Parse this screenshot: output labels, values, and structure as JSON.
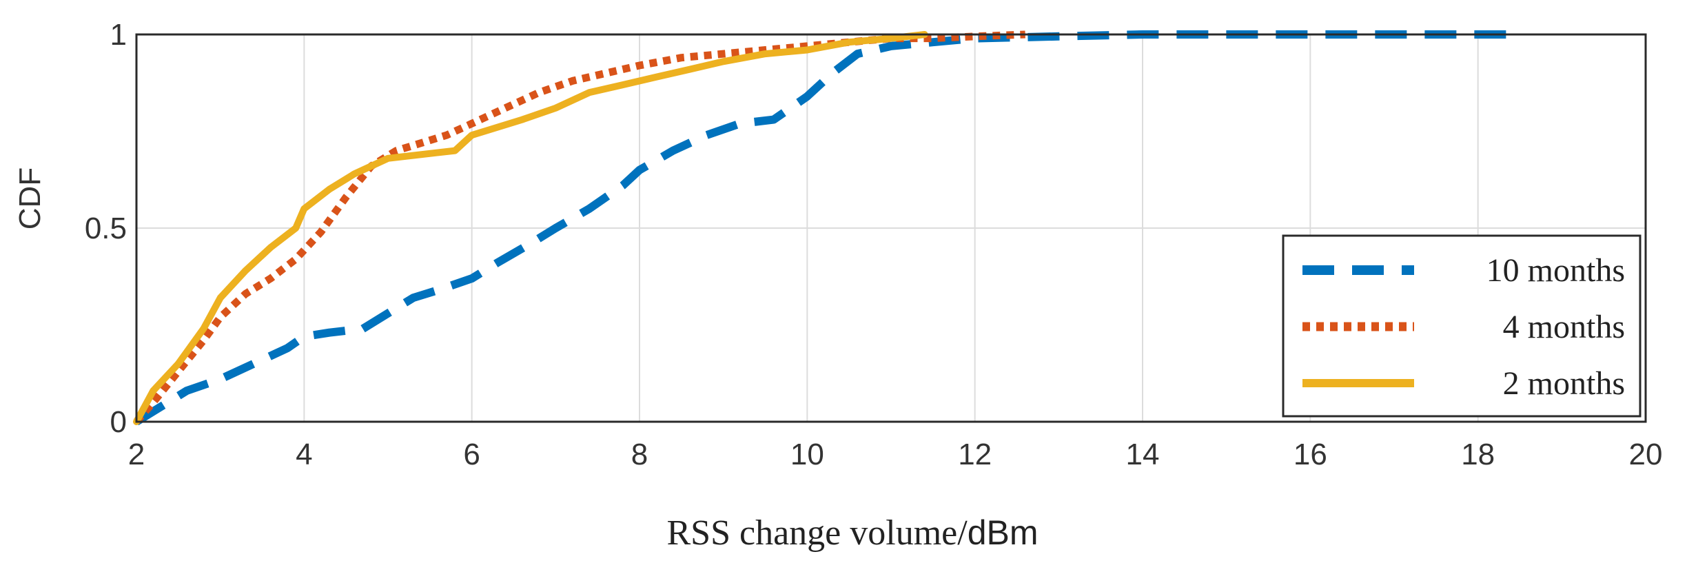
{
  "chart_data": {
    "type": "line",
    "title": "",
    "xlabel_main": "RSS change volume/",
    "xlabel_unit": "dBm",
    "ylabel": "CDF",
    "xlim": [
      2,
      20
    ],
    "ylim": [
      0,
      1
    ],
    "xticks": [
      2,
      4,
      6,
      8,
      10,
      12,
      14,
      16,
      18,
      20
    ],
    "yticks": [
      0,
      0.5,
      1
    ],
    "ytick_labels": [
      "0",
      "0.5",
      "1"
    ],
    "grid": true,
    "legend_position": "bottom-right",
    "series": [
      {
        "name": "10 months",
        "color": "#0072BD",
        "style": "dashed",
        "x": [
          2.0,
          2.3,
          2.6,
          3.0,
          3.4,
          3.8,
          4.0,
          4.3,
          4.7,
          5.0,
          5.3,
          5.6,
          6.0,
          6.3,
          6.7,
          7.0,
          7.4,
          7.8,
          8.0,
          8.4,
          8.8,
          9.2,
          9.6,
          10.0,
          10.3,
          10.6,
          11.0,
          11.5,
          12.0,
          13.0,
          14.0,
          16.0,
          18.4
        ],
        "y": [
          0.0,
          0.04,
          0.08,
          0.11,
          0.15,
          0.19,
          0.22,
          0.23,
          0.24,
          0.28,
          0.32,
          0.34,
          0.37,
          0.41,
          0.46,
          0.5,
          0.55,
          0.61,
          0.65,
          0.7,
          0.74,
          0.77,
          0.78,
          0.84,
          0.9,
          0.95,
          0.97,
          0.98,
          0.99,
          0.995,
          1.0,
          1.0,
          1.0
        ]
      },
      {
        "name": "4 months",
        "color": "#D95319",
        "style": "dotted",
        "x": [
          2.0,
          2.2,
          2.5,
          2.8,
          3.0,
          3.3,
          3.6,
          3.9,
          4.2,
          4.5,
          4.8,
          5.1,
          5.4,
          5.7,
          6.0,
          6.4,
          6.8,
          7.2,
          7.6,
          8.0,
          8.5,
          9.0,
          9.5,
          10.0,
          10.5,
          11.0,
          11.5,
          12.0,
          12.6
        ],
        "y": [
          0.0,
          0.05,
          0.13,
          0.21,
          0.27,
          0.33,
          0.37,
          0.42,
          0.49,
          0.58,
          0.66,
          0.7,
          0.72,
          0.74,
          0.77,
          0.81,
          0.85,
          0.88,
          0.9,
          0.92,
          0.94,
          0.95,
          0.96,
          0.97,
          0.98,
          0.99,
          0.99,
          0.995,
          1.0
        ]
      },
      {
        "name": "2 months",
        "color": "#EDB120",
        "style": "solid",
        "x": [
          2.0,
          2.2,
          2.5,
          2.8,
          3.0,
          3.3,
          3.6,
          3.9,
          4.0,
          4.3,
          4.6,
          5.0,
          5.4,
          5.8,
          6.0,
          6.3,
          6.6,
          7.0,
          7.4,
          7.8,
          8.2,
          8.6,
          9.0,
          9.5,
          10.0,
          10.5,
          11.0,
          11.4
        ],
        "y": [
          0.0,
          0.08,
          0.15,
          0.24,
          0.32,
          0.39,
          0.45,
          0.5,
          0.55,
          0.6,
          0.64,
          0.68,
          0.69,
          0.7,
          0.74,
          0.76,
          0.78,
          0.81,
          0.85,
          0.87,
          0.89,
          0.91,
          0.93,
          0.95,
          0.96,
          0.98,
          0.99,
          1.0
        ]
      }
    ]
  }
}
